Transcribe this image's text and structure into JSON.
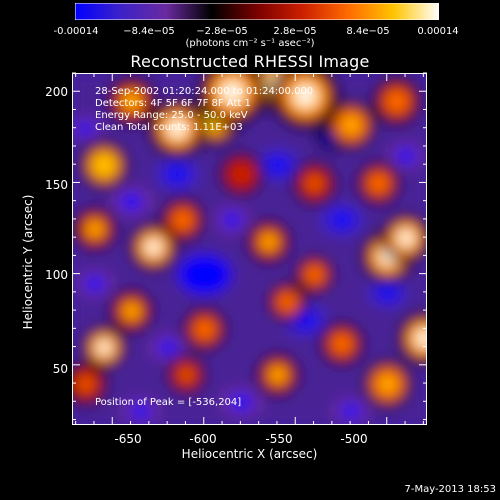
{
  "colors": {
    "background": "#000000",
    "text": "#ffffff"
  },
  "colorbar": {
    "ticks": [
      "-0.00014",
      "−8.4e−05",
      "−2.8e−05",
      "2.8e−05",
      "8.4e−05",
      "0.00014"
    ],
    "units": "(photons cm⁻² s⁻¹ asec⁻²)",
    "range": [
      -0.00014,
      0.00014
    ],
    "stops": [
      "#0000ff",
      "#3c22c8",
      "#6a2aa0",
      "#000000",
      "#7a0000",
      "#cc1f00",
      "#ff6a00",
      "#ffc400",
      "#ffffff"
    ]
  },
  "title": "Reconstructed RHESSI Image",
  "info_lines": [
    "28-Sep-2002 01:20:24.000 to 01:24:00.000",
    "Detectors: 4F 5F 6F 7F 8F  Att 1",
    "Energy Range: 25.0 - 50.0 keV",
    "Clean    Total counts: 1.11E+03"
  ],
  "peak_text": "Position of Peak = [-536,204]",
  "x_axis": {
    "label": "Heliocentric X (arcsec)",
    "ticks": [
      "-650",
      "-600",
      "-550",
      "-500"
    ],
    "range": [
      -672,
      -478
    ]
  },
  "y_axis": {
    "label": "Heliocentric Y (arcsec)",
    "ticks": [
      "50",
      "100",
      "150",
      "200"
    ],
    "range": [
      17,
      210
    ]
  },
  "date_stamp": "7-May-2013 18:53",
  "chart_data": {
    "type": "heatmap",
    "title": "Reconstructed RHESSI Image",
    "xlabel": "Heliocentric X (arcsec)",
    "ylabel": "Heliocentric Y (arcsec)",
    "xlim": [
      -672,
      -478
    ],
    "ylim": [
      17,
      210
    ],
    "x_ticks": [
      -650,
      -600,
      -550,
      -500
    ],
    "y_ticks": [
      50,
      100,
      150,
      200
    ],
    "colorbar_range": [
      -0.00014,
      0.00014
    ],
    "peak": {
      "x": -536,
      "y": 204
    },
    "blobs": [
      {
        "x": -585,
        "y": 200,
        "v": 1.0,
        "s": 14
      },
      {
        "x": -545,
        "y": 198,
        "v": 1.0,
        "s": 14
      },
      {
        "x": -560,
        "y": 205,
        "v": 0.9,
        "s": 12
      },
      {
        "x": -615,
        "y": 180,
        "v": 0.85,
        "s": 12
      },
      {
        "x": -595,
        "y": 185,
        "v": 0.8,
        "s": 11
      },
      {
        "x": -655,
        "y": 160,
        "v": 0.8,
        "s": 10
      },
      {
        "x": -640,
        "y": 195,
        "v": 0.6,
        "s": 10
      },
      {
        "x": -520,
        "y": 182,
        "v": 0.7,
        "s": 10
      },
      {
        "x": -495,
        "y": 195,
        "v": 0.5,
        "s": 10
      },
      {
        "x": -628,
        "y": 115,
        "v": 0.85,
        "s": 10
      },
      {
        "x": -612,
        "y": 130,
        "v": 0.5,
        "s": 9
      },
      {
        "x": -660,
        "y": 125,
        "v": 0.6,
        "s": 9
      },
      {
        "x": -565,
        "y": 118,
        "v": 0.6,
        "s": 9
      },
      {
        "x": -540,
        "y": 100,
        "v": 0.5,
        "s": 8
      },
      {
        "x": -500,
        "y": 110,
        "v": 0.85,
        "s": 11
      },
      {
        "x": -490,
        "y": 120,
        "v": 0.9,
        "s": 10
      },
      {
        "x": -505,
        "y": 150,
        "v": 0.55,
        "s": 9
      },
      {
        "x": -480,
        "y": 65,
        "v": 0.9,
        "s": 11
      },
      {
        "x": -500,
        "y": 40,
        "v": 0.75,
        "s": 10
      },
      {
        "x": -525,
        "y": 62,
        "v": 0.55,
        "s": 9
      },
      {
        "x": -560,
        "y": 45,
        "v": 0.6,
        "s": 9
      },
      {
        "x": -555,
        "y": 85,
        "v": 0.5,
        "s": 8
      },
      {
        "x": -600,
        "y": 70,
        "v": 0.55,
        "s": 9
      },
      {
        "x": -640,
        "y": 80,
        "v": 0.65,
        "s": 9
      },
      {
        "x": -655,
        "y": 60,
        "v": 0.85,
        "s": 9
      },
      {
        "x": -665,
        "y": 40,
        "v": 0.4,
        "s": 9
      },
      {
        "x": -610,
        "y": 45,
        "v": 0.4,
        "s": 8
      },
      {
        "x": -580,
        "y": 155,
        "v": 0.35,
        "s": 9
      },
      {
        "x": -540,
        "y": 150,
        "v": 0.4,
        "s": 9
      },
      {
        "x": -600,
        "y": 100,
        "v": -0.9,
        "s": 12
      },
      {
        "x": -615,
        "y": 155,
        "v": -0.85,
        "s": 10
      },
      {
        "x": -560,
        "y": 160,
        "v": -0.7,
        "s": 10
      },
      {
        "x": -525,
        "y": 130,
        "v": -0.75,
        "s": 10
      },
      {
        "x": -545,
        "y": 75,
        "v": -0.8,
        "s": 10
      },
      {
        "x": -580,
        "y": 30,
        "v": -0.6,
        "s": 10
      },
      {
        "x": -640,
        "y": 140,
        "v": -0.55,
        "s": 10
      },
      {
        "x": -660,
        "y": 95,
        "v": -0.55,
        "s": 9
      },
      {
        "x": -620,
        "y": 60,
        "v": -0.5,
        "s": 9
      },
      {
        "x": -500,
        "y": 90,
        "v": -0.7,
        "s": 9
      },
      {
        "x": -490,
        "y": 165,
        "v": -0.6,
        "s": 9
      },
      {
        "x": -520,
        "y": 25,
        "v": -0.5,
        "s": 9
      },
      {
        "x": -635,
        "y": 25,
        "v": -0.45,
        "s": 9
      },
      {
        "x": -585,
        "y": 130,
        "v": -0.55,
        "s": 9
      },
      {
        "x": -665,
        "y": 180,
        "v": -0.4,
        "s": 8
      },
      {
        "x": -530,
        "y": 175,
        "v": -0.35,
        "s": 8
      }
    ]
  }
}
